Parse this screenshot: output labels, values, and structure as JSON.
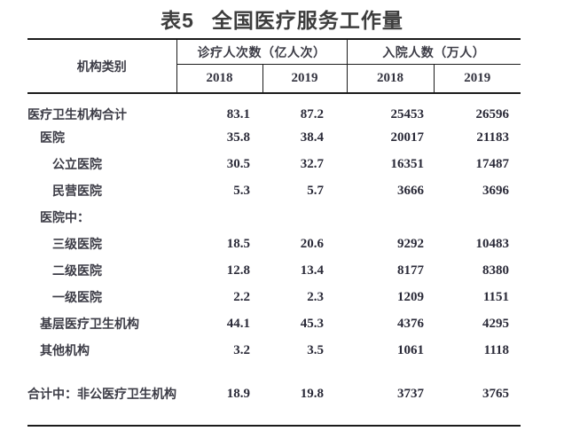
{
  "title": {
    "number": "表5",
    "text": "全国医疗服务工作量"
  },
  "table": {
    "category_header": "机构类别",
    "groups": [
      {
        "label": "诊疗人次数（亿人次）",
        "years": [
          "2018",
          "2019"
        ]
      },
      {
        "label": "入院人数（万人）",
        "years": [
          "2018",
          "2019"
        ]
      }
    ],
    "rows": [
      {
        "label": "医疗卫生机构合计",
        "indent": 0,
        "values": [
          "83.1",
          "87.2",
          "25453",
          "26596"
        ]
      },
      {
        "label": "医院",
        "indent": 1,
        "values": [
          "35.8",
          "38.4",
          "20017",
          "21183"
        ]
      },
      {
        "label": "公立医院",
        "indent": 2,
        "values": [
          "30.5",
          "32.7",
          "16351",
          "17487"
        ]
      },
      {
        "label": "民营医院",
        "indent": 2,
        "values": [
          "5.3",
          "5.7",
          "3666",
          "3696"
        ]
      },
      {
        "label": "医院中：",
        "indent": 1,
        "values": [
          "",
          "",
          "",
          ""
        ]
      },
      {
        "label": "三级医院",
        "indent": 2,
        "values": [
          "18.5",
          "20.6",
          "9292",
          "10483"
        ]
      },
      {
        "label": "二级医院",
        "indent": 2,
        "values": [
          "12.8",
          "13.4",
          "8177",
          "8380"
        ]
      },
      {
        "label": "一级医院",
        "indent": 2,
        "values": [
          "2.2",
          "2.3",
          "1209",
          "1151"
        ]
      },
      {
        "label": "基层医疗卫生机构",
        "indent": 1,
        "values": [
          "44.1",
          "45.3",
          "4376",
          "4295"
        ]
      },
      {
        "label": "其他机构",
        "indent": 1,
        "values": [
          "3.2",
          "3.5",
          "1061",
          "1118"
        ]
      },
      {
        "label": "合计中：非公医疗卫生机构",
        "indent": 0,
        "values": [
          "18.9",
          "19.8",
          "3737",
          "3765"
        ]
      }
    ]
  },
  "colors": {
    "title_text": "#3d3d3d",
    "label_text": "#3c3c46",
    "number_text": "#2a2a38",
    "border": "#1b1b1b",
    "background": "#ffffff"
  }
}
